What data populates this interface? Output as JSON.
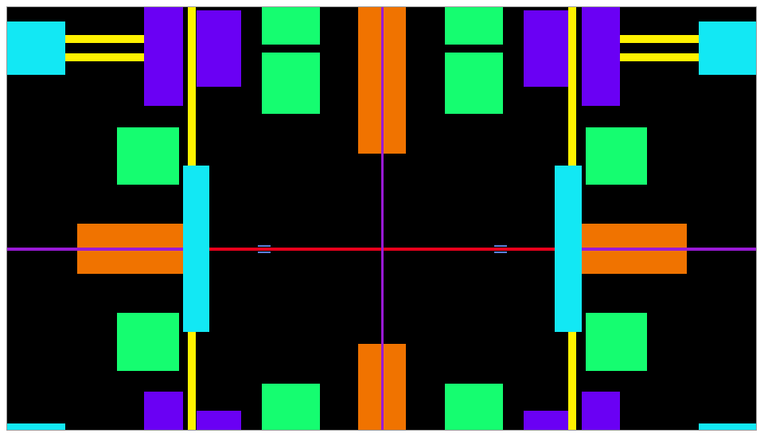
{
  "colors": {
    "background": "#000000",
    "cyan": "#12e8f4",
    "yellow": "#fff200",
    "purple": "#6a00f4",
    "green": "#15fd70",
    "orange": "#f07300",
    "violet_line": "#9a1ad6",
    "red_line": "#e8001c",
    "marker_blue": "#5a7fd8"
  }
}
